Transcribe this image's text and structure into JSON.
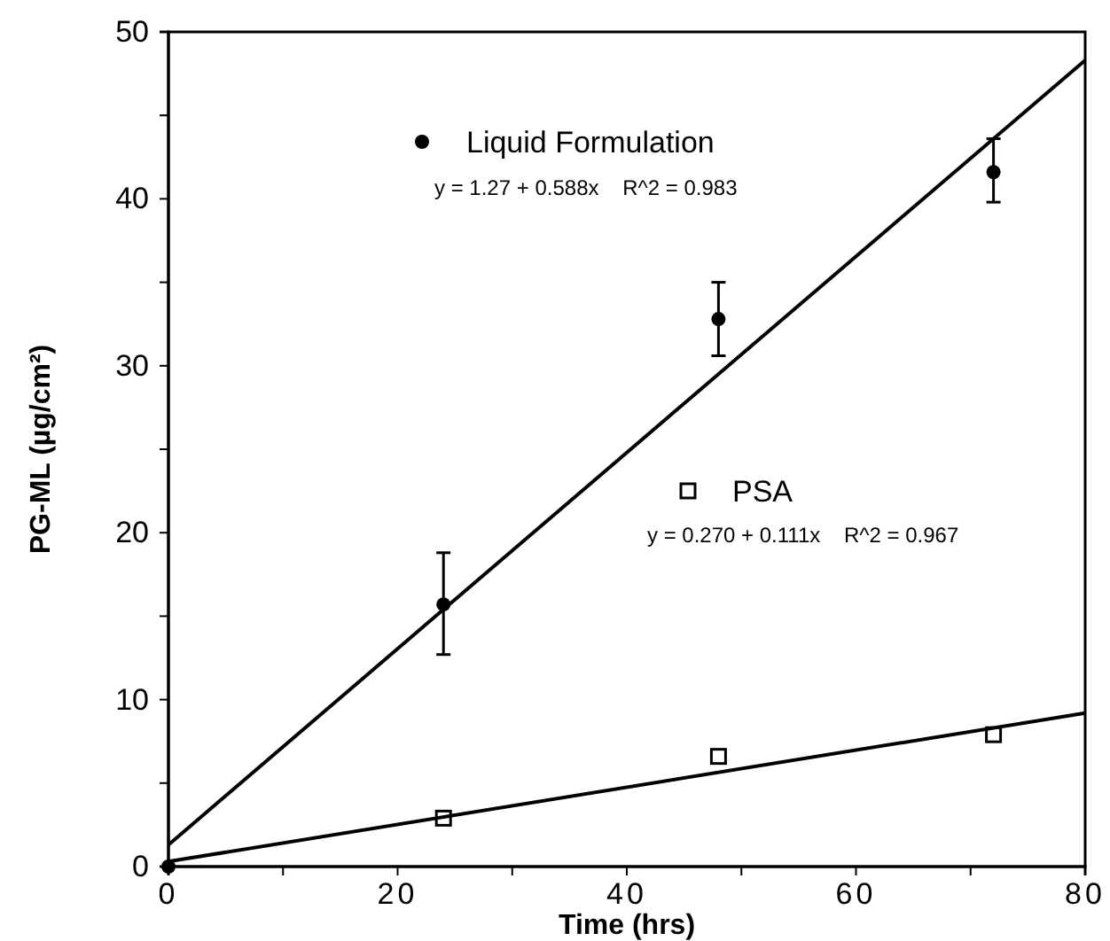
{
  "chart_data": {
    "type": "scatter",
    "xlabel": "Time   (hrs)",
    "ylabel": "PG-ML    (µg/cm²)",
    "xlim": [
      0,
      80
    ],
    "ylim": [
      0,
      50
    ],
    "xticks": [
      0,
      {
        "value": 10,
        "label": null
      },
      20,
      {
        "value": 30,
        "label": null
      },
      40,
      {
        "value": 50,
        "label": null
      },
      60,
      {
        "value": 70,
        "label": null
      },
      80
    ],
    "yticks": [
      0,
      {
        "value": 5,
        "label": null
      },
      10,
      {
        "value": 15,
        "label": null
      },
      20,
      {
        "value": 25,
        "label": null
      },
      30,
      {
        "value": 35,
        "label": null
      },
      40,
      {
        "value": 45,
        "label": null
      },
      50
    ],
    "grid": false,
    "legend": "top",
    "series": [
      {
        "name": "Liquid Formulation",
        "color": "#000000",
        "marker": "circle",
        "x": [
          0,
          24,
          48,
          72
        ],
        "values": [
          0,
          15.7,
          32.8,
          41.6
        ],
        "errors": [
          null,
          [
            12.7,
            18.8
          ],
          [
            30.6,
            35.0
          ],
          [
            39.8,
            43.6
          ]
        ]
      },
      {
        "name": "PSA",
        "color": "#000000",
        "marker": "square",
        "x": [
          24,
          48,
          72
        ],
        "values": [
          2.9,
          6.6,
          7.9
        ]
      },
      {
        "type": "line",
        "color": "#000000",
        "marker": "none",
        "x": [
          0,
          80
        ],
        "values": [
          1.3,
          48.3
        ]
      },
      {
        "type": "line",
        "color": "#000000",
        "marker": "none",
        "x": [
          0,
          80
        ],
        "values": [
          0.3,
          9.2
        ]
      }
    ],
    "annotations": [
      "y = 1.27 + 0.588x    R^2 = 0.983",
      "y = 0.270 + 0.111x    R^2 = 0.967"
    ]
  }
}
